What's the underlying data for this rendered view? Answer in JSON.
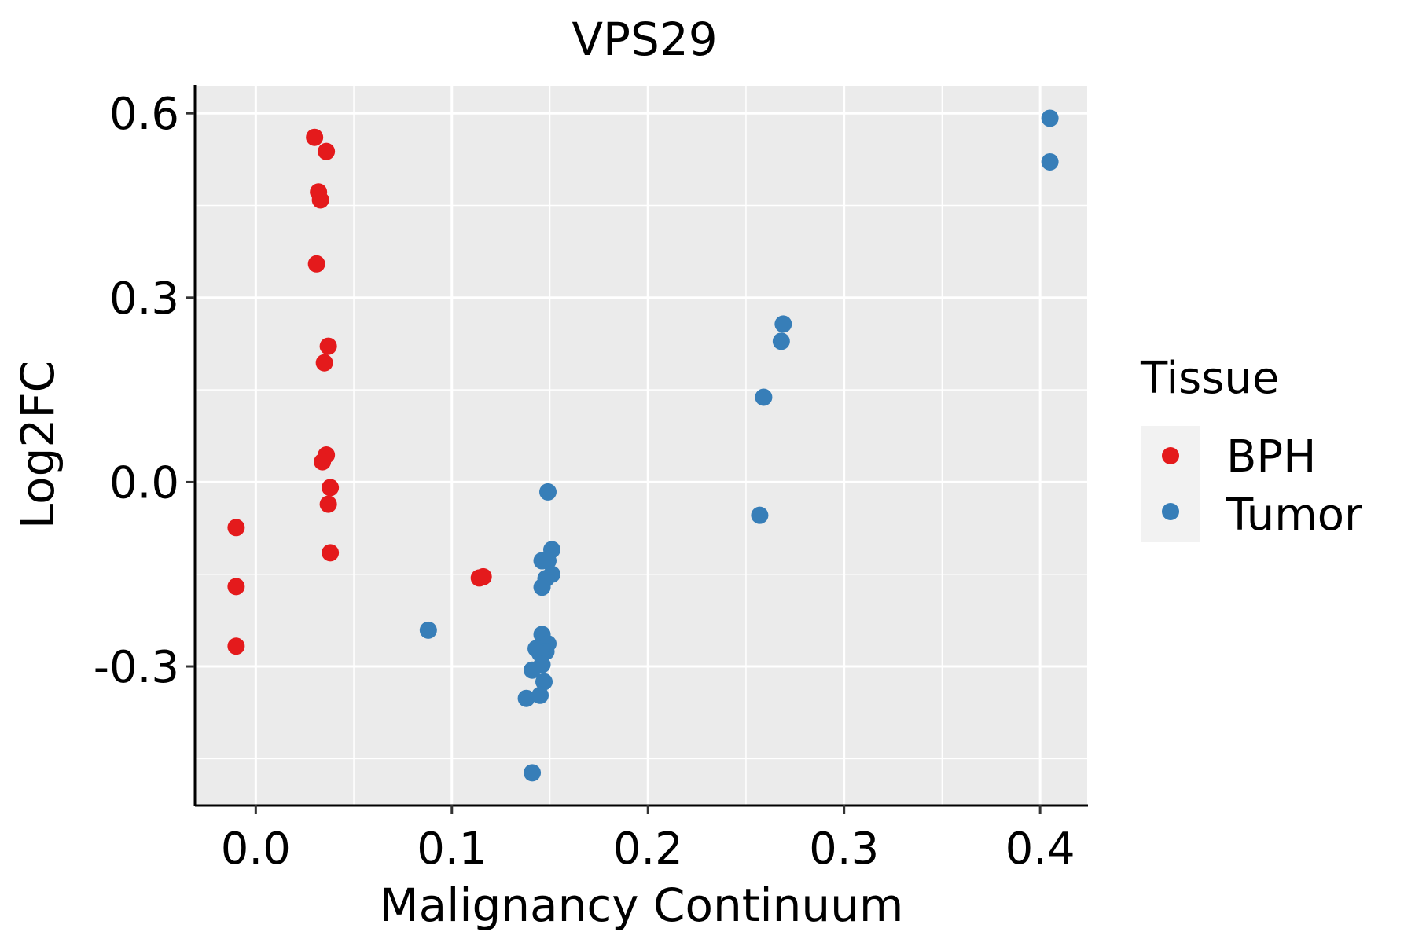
{
  "chart_data": {
    "type": "scatter",
    "title": "VPS29",
    "xlabel": "Malignancy Continuum",
    "ylabel": "Log2FC",
    "xlim": [
      -0.031,
      0.424
    ],
    "ylim": [
      -0.525,
      0.645
    ],
    "x_ticks": [
      0.0,
      0.1,
      0.2,
      0.3,
      0.4
    ],
    "x_tick_labels": [
      "0.0",
      "0.1",
      "0.2",
      "0.3",
      "0.4"
    ],
    "y_ticks": [
      -0.3,
      0.0,
      0.3,
      0.6
    ],
    "y_tick_labels": [
      "-0.3",
      "0.0",
      "0.3",
      "0.6"
    ],
    "grid": true,
    "legend": {
      "title": "Tissue",
      "position": "right"
    },
    "series": [
      {
        "name": "BPH",
        "color": "#E41A1C",
        "points": [
          [
            0.03,
            0.561
          ],
          [
            0.036,
            0.538
          ],
          [
            0.032,
            0.472
          ],
          [
            0.033,
            0.459
          ],
          [
            0.031,
            0.355
          ],
          [
            0.037,
            0.221
          ],
          [
            0.035,
            0.194
          ],
          [
            0.036,
            0.044
          ],
          [
            0.034,
            0.033
          ],
          [
            0.038,
            -0.009
          ],
          [
            0.037,
            -0.036
          ],
          [
            0.038,
            -0.115
          ],
          [
            -0.01,
            -0.074
          ],
          [
            -0.01,
            -0.17
          ],
          [
            -0.01,
            -0.267
          ],
          [
            0.114,
            -0.156
          ],
          [
            0.116,
            -0.154
          ]
        ]
      },
      {
        "name": "Tumor",
        "color": "#377EB8",
        "points": [
          [
            0.405,
            0.592
          ],
          [
            0.405,
            0.521
          ],
          [
            0.269,
            0.257
          ],
          [
            0.268,
            0.229
          ],
          [
            0.259,
            0.138
          ],
          [
            0.257,
            -0.054
          ],
          [
            0.149,
            -0.016
          ],
          [
            0.151,
            -0.11
          ],
          [
            0.146,
            -0.128
          ],
          [
            0.149,
            -0.128
          ],
          [
            0.151,
            -0.15
          ],
          [
            0.148,
            -0.157
          ],
          [
            0.146,
            -0.171
          ],
          [
            0.088,
            -0.241
          ],
          [
            0.146,
            -0.248
          ],
          [
            0.149,
            -0.263
          ],
          [
            0.143,
            -0.271
          ],
          [
            0.148,
            -0.276
          ],
          [
            0.145,
            -0.279
          ],
          [
            0.146,
            -0.297
          ],
          [
            0.141,
            -0.306
          ],
          [
            0.147,
            -0.325
          ],
          [
            0.145,
            -0.347
          ],
          [
            0.138,
            -0.352
          ],
          [
            0.141,
            -0.473
          ]
        ]
      }
    ]
  }
}
